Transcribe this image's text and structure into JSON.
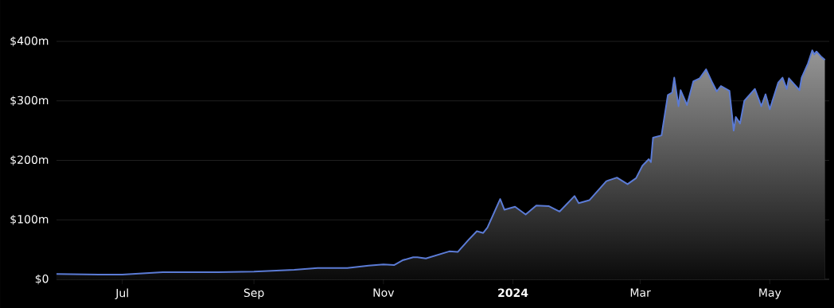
{
  "chart_data": {
    "type": "area",
    "x": [
      "2023-05-31",
      "2023-06-20",
      "2023-07-01",
      "2023-07-20",
      "2023-08-15",
      "2023-09-01",
      "2023-09-20",
      "2023-10-01",
      "2023-10-15",
      "2023-10-25",
      "2023-11-01",
      "2023-11-06",
      "2023-11-10",
      "2023-11-15",
      "2023-11-17",
      "2023-11-21",
      "2023-12-02",
      "2023-12-06",
      "2023-12-11",
      "2023-12-15",
      "2023-12-18",
      "2023-12-20",
      "2023-12-26",
      "2023-12-28",
      "2024-01-02",
      "2024-01-07",
      "2024-01-12",
      "2024-01-18",
      "2024-01-23",
      "2024-01-30",
      "2024-02-01",
      "2024-02-06",
      "2024-02-14",
      "2024-02-19",
      "2024-02-24",
      "2024-02-28",
      "2024-03-02",
      "2024-03-05",
      "2024-03-06",
      "2024-03-07",
      "2024-03-11",
      "2024-03-14",
      "2024-03-16",
      "2024-03-17",
      "2024-03-19",
      "2024-03-20",
      "2024-03-23",
      "2024-03-26",
      "2024-03-29",
      "2024-04-01",
      "2024-04-04",
      "2024-04-06",
      "2024-04-08",
      "2024-04-12",
      "2024-04-14",
      "2024-04-15",
      "2024-04-17",
      "2024-04-19",
      "2024-04-24",
      "2024-04-27",
      "2024-04-29",
      "2024-05-01",
      "2024-05-05",
      "2024-05-07",
      "2024-05-09",
      "2024-05-10",
      "2024-05-15",
      "2024-05-16",
      "2024-05-19",
      "2024-05-21",
      "2024-05-22",
      "2024-05-23",
      "2024-05-25",
      "2024-05-27"
    ],
    "series": [
      {
        "color": "#5b7bd5",
        "values": [
          9,
          8,
          8,
          12,
          12,
          13,
          16,
          19,
          19,
          23,
          25,
          24,
          32,
          37,
          37,
          35,
          47,
          46,
          66,
          81,
          78,
          87,
          135,
          117,
          122,
          109,
          124,
          123,
          114,
          140,
          128,
          133,
          165,
          171,
          160,
          170,
          191,
          202,
          197,
          238,
          242,
          310,
          314,
          339,
          291,
          318,
          293,
          333,
          338,
          353,
          330,
          316,
          325,
          317,
          250,
          273,
          262,
          300,
          320,
          291,
          311,
          286,
          331,
          339,
          320,
          338,
          318,
          339,
          363,
          385,
          378,
          383,
          375,
          369
        ]
      }
    ],
    "xlim": [
      "2023-05-31",
      "2024-05-29"
    ],
    "xticks": [
      {
        "value": "2023-07-01",
        "label": "Jul"
      },
      {
        "value": "2023-09-01",
        "label": "Sep"
      },
      {
        "value": "2023-11-01",
        "label": "Nov"
      },
      {
        "value": "2024-01-01",
        "label": "2024"
      },
      {
        "value": "2024-03-01",
        "label": "Mar"
      },
      {
        "value": "2024-05-01",
        "label": "May"
      }
    ],
    "ylim": [
      0,
      400
    ],
    "yticks": [
      {
        "value": 0,
        "label": "$0"
      },
      {
        "value": 100,
        "label": "$100m"
      },
      {
        "value": 200,
        "label": "$200m"
      },
      {
        "value": 300,
        "label": "$300m"
      },
      {
        "value": 400,
        "label": "$400m"
      }
    ],
    "grid": "y",
    "marker": "none",
    "line_style": "solid"
  }
}
